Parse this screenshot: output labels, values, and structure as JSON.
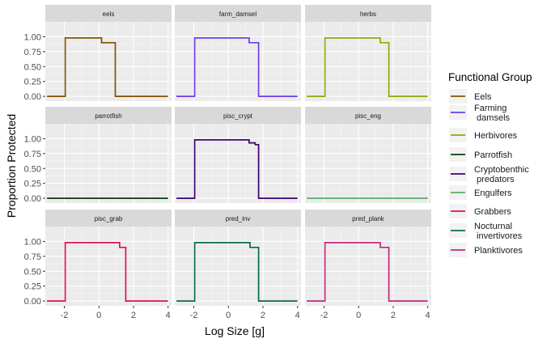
{
  "chart_data": {
    "type": "line",
    "layout": "facet-grid 3x3, shared axes",
    "xlabel": "Log Size [g]",
    "ylabel": "Proportion Protected",
    "xlim": [
      -3.1,
      4.2
    ],
    "ylim": [
      -0.08,
      1.25
    ],
    "x_ticks": [
      "-2",
      "0",
      "2",
      "4"
    ],
    "x_tick_values": [
      -2,
      0,
      2,
      4
    ],
    "y_ticks": [
      "0.00",
      "0.25",
      "0.50",
      "0.75",
      "1.00"
    ],
    "y_tick_values": [
      0,
      0.25,
      0.5,
      0.75,
      1.0
    ],
    "grid": true,
    "panel_background": "#ebebeb",
    "strip_background": "#d9d9d9",
    "legend": {
      "title": "Functional Group",
      "placement": "right",
      "entries": [
        {
          "label": "Eels",
          "color": "#7f5300"
        },
        {
          "label": "Farming\n damsels",
          "color": "#6b3ee8"
        },
        {
          "label": "Herbivores",
          "color": "#8ea90a"
        },
        {
          "label": "Parrotfish",
          "color": "#0b3d0b"
        },
        {
          "label": "Cryptobenthic\n predators",
          "color": "#3e0070"
        },
        {
          "label": "Engulfers",
          "color": "#5aad5f"
        },
        {
          "label": "Grabbers",
          "color": "#d81450"
        },
        {
          "label": "Nocturnal\n invertivores",
          "color": "#0a6b46"
        },
        {
          "label": "Planktivores",
          "color": "#c1287f"
        }
      ]
    },
    "facets": [
      {
        "strip": "eels",
        "color": "#7f5300",
        "x": [
          -3,
          -1.95,
          -1.95,
          0.15,
          0.15,
          0.95,
          0.95,
          4
        ],
        "y": [
          0,
          0,
          0.98,
          0.98,
          0.9,
          0.9,
          0,
          0
        ]
      },
      {
        "strip": "farm_damsel",
        "color": "#6b3ee8",
        "x": [
          -3,
          -1.95,
          -1.95,
          1.2,
          1.2,
          1.75,
          1.75,
          4
        ],
        "y": [
          0,
          0,
          0.98,
          0.98,
          0.9,
          0.9,
          0,
          0
        ]
      },
      {
        "strip": "herbs",
        "color": "#8ea90a",
        "x": [
          -3,
          -1.95,
          -1.95,
          1.25,
          1.25,
          1.75,
          1.75,
          4
        ],
        "y": [
          0,
          0,
          0.98,
          0.98,
          0.9,
          0.9,
          0,
          0
        ]
      },
      {
        "strip": "parrotfish",
        "color": "#0b3d0b",
        "x": [
          -3,
          4
        ],
        "y": [
          0,
          0
        ]
      },
      {
        "strip": "pisc_crypt",
        "color": "#3e0070",
        "x": [
          -3,
          -1.95,
          -1.95,
          1.2,
          1.2,
          1.55,
          1.55,
          1.75,
          1.75,
          4
        ],
        "y": [
          0,
          0,
          0.98,
          0.98,
          0.93,
          0.93,
          0.9,
          0.9,
          0,
          0
        ]
      },
      {
        "strip": "pisc_eng",
        "color": "#5aad5f",
        "x": [
          -3,
          4
        ],
        "y": [
          0,
          0
        ]
      },
      {
        "strip": "pisc_grab",
        "color": "#d81450",
        "x": [
          -3,
          -1.95,
          -1.95,
          1.2,
          1.2,
          1.55,
          1.55,
          4
        ],
        "y": [
          0,
          0,
          0.98,
          0.98,
          0.9,
          0.9,
          0,
          0
        ]
      },
      {
        "strip": "pred_inv",
        "color": "#0a6b46",
        "x": [
          -3,
          -1.95,
          -1.95,
          1.25,
          1.25,
          1.75,
          1.75,
          4
        ],
        "y": [
          0,
          0,
          0.98,
          0.98,
          0.9,
          0.9,
          0,
          0
        ]
      },
      {
        "strip": "pred_plank",
        "color": "#c1287f",
        "x": [
          -3,
          -1.95,
          -1.95,
          1.25,
          1.25,
          1.75,
          1.75,
          4
        ],
        "y": [
          0,
          0,
          0.98,
          0.98,
          0.9,
          0.9,
          0,
          0
        ]
      }
    ]
  }
}
